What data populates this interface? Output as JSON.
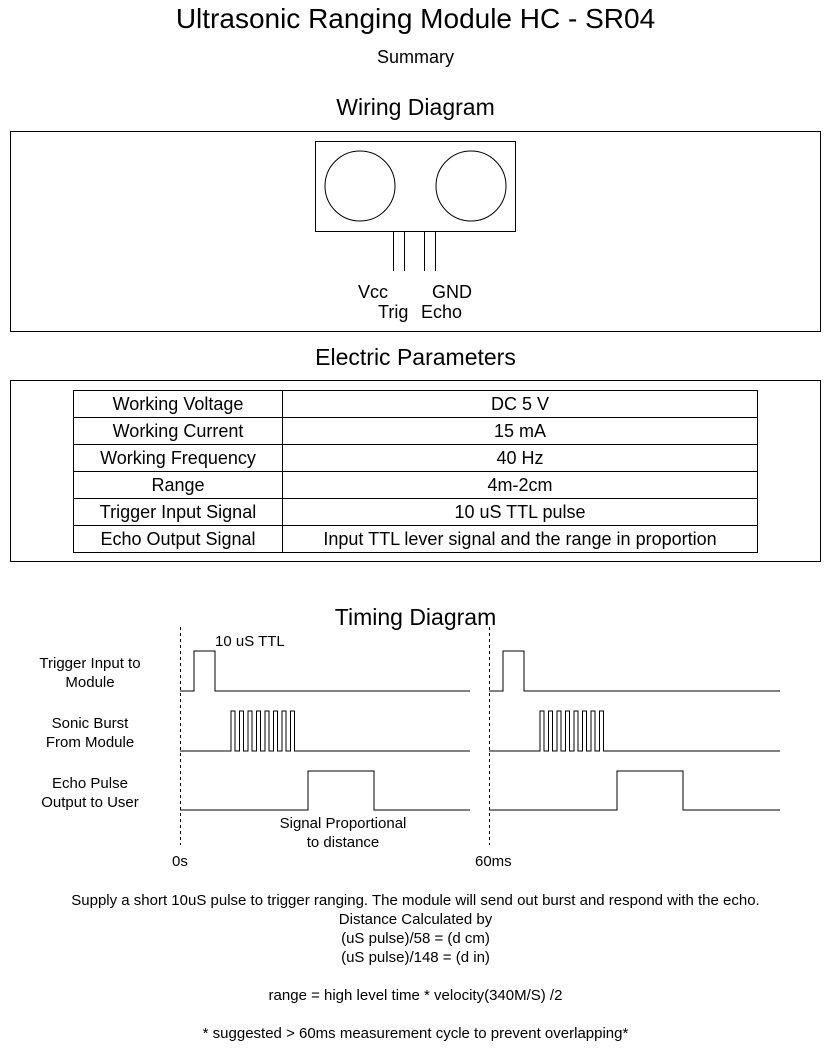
{
  "title": "Ultrasonic Ranging Module HC - SR04",
  "subtitle": "Summary",
  "wiring": {
    "heading": "Wiring Diagram",
    "pins_top": {
      "vcc": "Vcc",
      "gnd": "GND"
    },
    "pins_bottom": {
      "trig": "Trig",
      "echo": "Echo"
    }
  },
  "electric": {
    "heading": "Electric Parameters",
    "rows": [
      {
        "param": "Working Voltage",
        "value": "DC 5 V"
      },
      {
        "param": "Working Current",
        "value": "15 mA"
      },
      {
        "param": "Working Frequency",
        "value": "40 Hz"
      },
      {
        "param": "Range",
        "value": "4m-2cm"
      },
      {
        "param": "Trigger Input Signal",
        "value": "10 uS TTL pulse"
      },
      {
        "param": "Echo Output Signal",
        "value": "Input TTL lever signal and the range in proportion"
      }
    ]
  },
  "timing": {
    "heading": "Timing Diagram",
    "signals": [
      {
        "line1": "Trigger Input to",
        "line2": "Module"
      },
      {
        "line1": "Sonic Burst",
        "line2": "From Module"
      },
      {
        "line1": "Echo Pulse",
        "line2": "Output to User"
      }
    ],
    "pulse_label": "10 uS TTL",
    "echo_note": {
      "line1": "Signal Proportional",
      "line2": "to distance"
    },
    "time_marks": {
      "start": "0s",
      "cycle": "60ms"
    }
  },
  "notes": {
    "line1": "Supply a short 10uS pulse to trigger ranging. The module will send out burst and respond with the echo.",
    "line2": "Distance Calculated by",
    "line3": "(uS pulse)/58 = (d cm)",
    "line4": "(uS pulse)/148 = (d in)",
    "line5": "range = high level time * velocity(340M/S) /2",
    "line6": "* suggested > 60ms measurement cycle to prevent overlapping*"
  }
}
